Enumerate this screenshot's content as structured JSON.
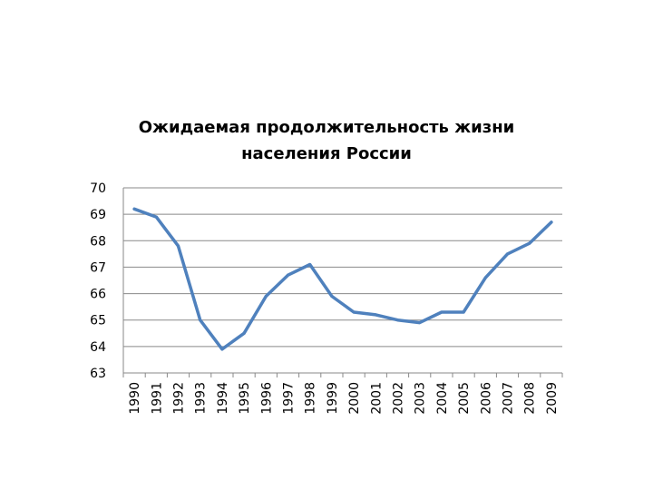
{
  "chart_data": {
    "type": "line",
    "title": "Ожидаемая продолжительность жизни\nнаселения России",
    "xlabel": "",
    "ylabel": "",
    "categories": [
      "1990",
      "1991",
      "1992",
      "1993",
      "1994",
      "1995",
      "1996",
      "1997",
      "1998",
      "1999",
      "2000",
      "2001",
      "2002",
      "2003",
      "2004",
      "2005",
      "2006",
      "2007",
      "2008",
      "2009"
    ],
    "series": [
      {
        "values": [
          69.2,
          68.9,
          67.8,
          65.0,
          63.9,
          64.5,
          65.9,
          66.7,
          67.1,
          65.9,
          65.3,
          65.2,
          65.0,
          64.9,
          65.3,
          65.3,
          66.6,
          67.5,
          67.9,
          68.7
        ],
        "color": "#4f81bd"
      }
    ],
    "ylim": [
      63,
      70
    ],
    "yticks": [
      "63",
      "64",
      "65",
      "66",
      "67",
      "68",
      "69",
      "70"
    ],
    "grid": true,
    "legend": "none",
    "gridline_color": "#898989",
    "axis_color": "#898989"
  }
}
